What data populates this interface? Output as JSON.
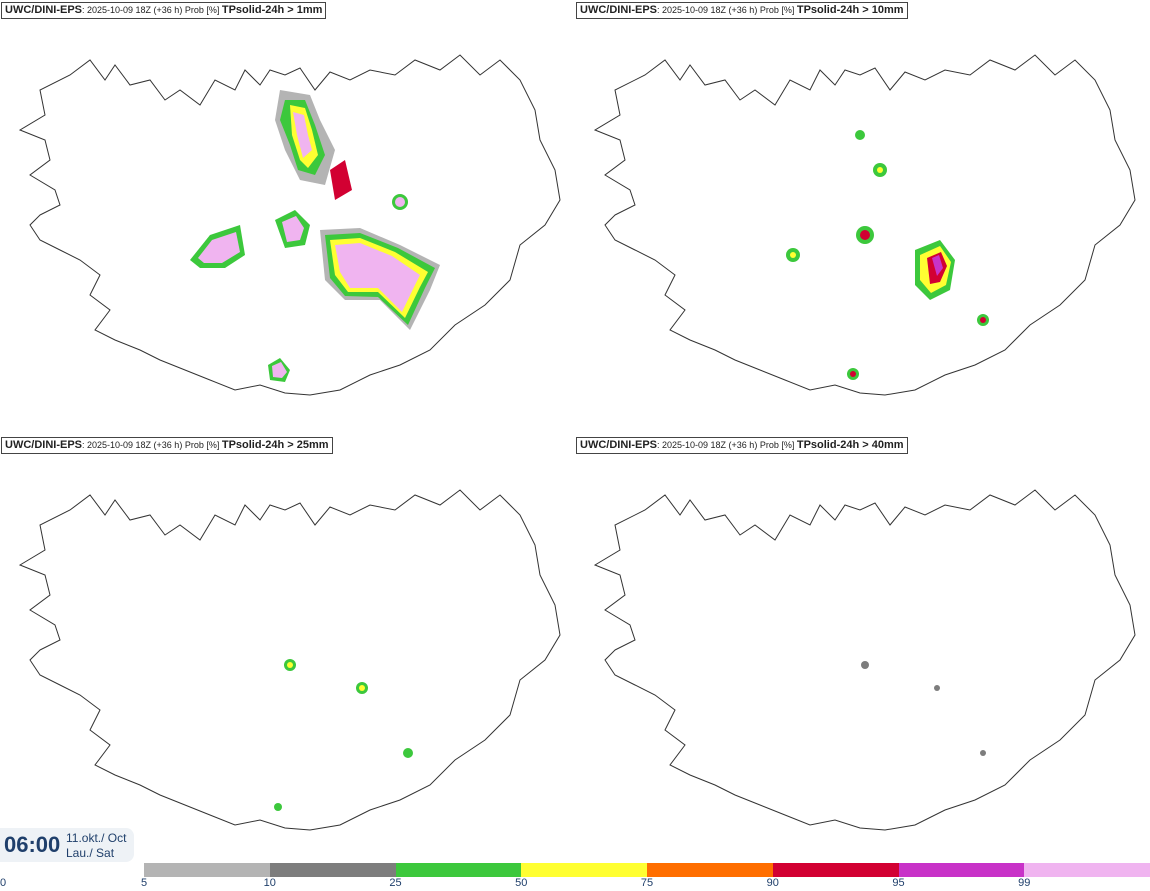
{
  "panels": [
    {
      "model": "UWC/DINI-EPS",
      "run": ": 2025-10-09 18Z (+36 h) Prob [%] ",
      "variable": "TPsolid-24h > 1mm"
    },
    {
      "model": "UWC/DINI-EPS",
      "run": ": 2025-10-09 18Z (+36 h) Prob [%] ",
      "variable": "TPsolid-24h > 10mm"
    },
    {
      "model": "UWC/DINI-EPS",
      "run": ": 2025-10-09 18Z (+36 h) Prob [%] ",
      "variable": "TPsolid-24h > 25mm"
    },
    {
      "model": "UWC/DINI-EPS",
      "run": ": 2025-10-09 18Z (+36 h) Prob [%] ",
      "variable": "TPsolid-24h > 40mm"
    }
  ],
  "valid_time": {
    "time": "06:00",
    "date_line1": "11.okt./ Oct",
    "date_line2": "Lau./ Sat"
  },
  "colorbar": {
    "ticks": [
      "0",
      "5",
      "10",
      "25",
      "50",
      "75",
      "90",
      "95",
      "99"
    ],
    "colors": [
      "#b4b4b4",
      "#7d7d7d",
      "#3cc83c",
      "#ffff32",
      "#ff6e00",
      "#d20032",
      "#c832c8",
      "#f0b4f0"
    ]
  }
}
